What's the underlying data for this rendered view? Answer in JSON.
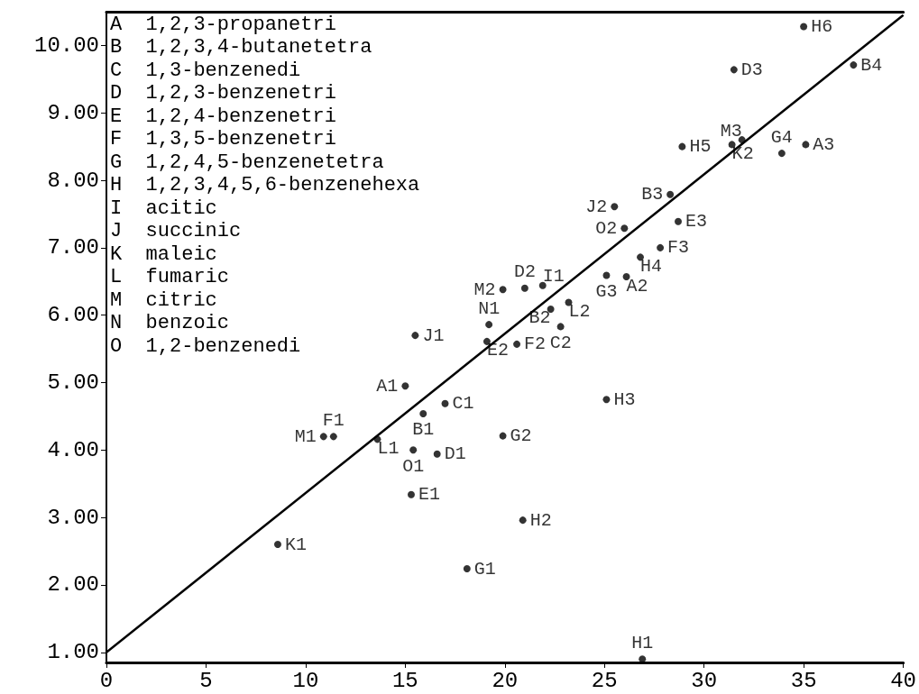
{
  "chart_data": {
    "type": "scatter",
    "xlim": [
      0,
      40
    ],
    "ylim": [
      0.85,
      10.5
    ],
    "xticks": [
      0,
      5,
      10,
      15,
      20,
      25,
      30,
      35,
      40
    ],
    "yticks": [
      {
        "value": 1,
        "label": "1.00"
      },
      {
        "value": 2,
        "label": "2.00"
      },
      {
        "value": 3,
        "label": "3.00"
      },
      {
        "value": 4,
        "label": "4.00"
      },
      {
        "value": 5,
        "label": "5.00"
      },
      {
        "value": 6,
        "label": "6.00"
      },
      {
        "value": 7,
        "label": "7.00"
      },
      {
        "value": 8,
        "label": "8.00"
      },
      {
        "value": 9,
        "label": "9.00"
      },
      {
        "value": 10,
        "label": "10.00"
      }
    ],
    "grid": false,
    "annotations": [
      "A  1,2,3-propanetri",
      "B  1,2,3,4-butanetetra",
      "C  1,3-benzenedi",
      "D  1,2,3-benzenetri",
      "E  1,2,4-benzenetri",
      "F  1,3,5-benzenetri",
      "G  1,2,4,5-benzenetetra",
      "H  1,2,3,4,5,6-benzenehexa",
      "I  acitic",
      "J  succinic",
      "K  maleic",
      "L  fumaric",
      "M  citric",
      "N  benzoic",
      "O  1,2-benzenedi"
    ],
    "series": [
      {
        "marker": "circle",
        "color": "#000000",
        "x": [
          15.0,
          11.4,
          10.9,
          13.6,
          15.9,
          15.4,
          16.6,
          15.3,
          8.6,
          17.0,
          19.9,
          20.9,
          18.1,
          25.1,
          26.9,
          35.0,
          31.5,
          37.5,
          31.9,
          31.4,
          28.9,
          35.1,
          33.9,
          28.3,
          25.5,
          26.0,
          28.7,
          27.8,
          26.8,
          25.1,
          26.1,
          19.9,
          21.0,
          21.9,
          23.2,
          22.3,
          22.8,
          19.2,
          19.1,
          20.6,
          15.5
        ],
        "values": [
          4.95,
          4.2,
          4.2,
          4.16,
          4.54,
          4.0,
          3.94,
          3.34,
          2.6,
          4.69,
          4.21,
          2.96,
          2.24,
          4.75,
          0.9,
          10.28,
          9.64,
          9.71,
          8.6,
          8.53,
          8.5,
          8.53,
          8.4,
          7.79,
          7.61,
          7.29,
          7.39,
          7.0,
          6.86,
          6.59,
          6.57,
          6.38,
          6.4,
          6.44,
          6.19,
          6.09,
          5.83,
          5.86,
          5.61,
          5.57,
          5.7
        ],
        "value_labels": [
          "A1",
          "F1",
          "M1",
          "L1",
          "B1",
          "O1",
          "D1",
          "E1",
          "K1",
          "C1",
          "G2",
          "H2",
          "G1",
          "H3",
          "H1",
          "H6",
          "D3",
          "B4",
          "M3",
          "K2",
          "H5",
          "A3",
          "G4",
          "B3",
          "J2",
          "O2",
          "E3",
          "F3",
          "H4",
          "G3",
          "A2",
          "M2",
          "D2",
          "I1",
          "L2",
          "B2",
          "C2",
          "N1",
          "E2",
          "F2",
          "J1"
        ]
      },
      {
        "type": "line",
        "marker": "none",
        "color": "#000000",
        "x": [
          0,
          40
        ],
        "values": [
          1.0,
          10.45
        ]
      }
    ]
  }
}
